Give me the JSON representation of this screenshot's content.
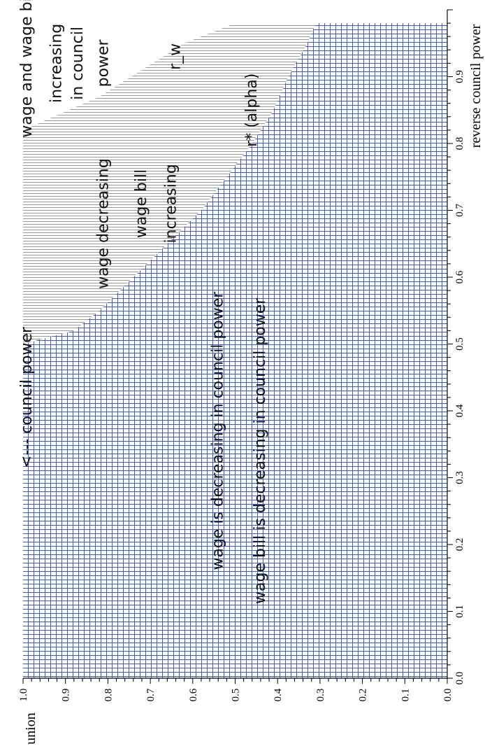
{
  "chart_data": {
    "type": "area",
    "orientation": "rotated-90-ccw",
    "x_axis": {
      "label": "reverse council power",
      "range": [
        0.0,
        1.0
      ],
      "ticks": [
        "0.0",
        "0.1",
        "0.2",
        "0.3",
        "0.4",
        "0.5",
        "0.6",
        "0.7",
        "0.8",
        "0.9"
      ],
      "tick_values": [
        0.0,
        0.1,
        0.2,
        0.3,
        0.4,
        0.5,
        0.6,
        0.7,
        0.8,
        0.9
      ]
    },
    "y_axis": {
      "label": "union",
      "range": [
        0.0,
        1.0
      ],
      "ticks": [
        "0.0",
        "0.1",
        "0.2",
        "0.3",
        "0.4",
        "0.5",
        "0.6",
        "0.7",
        "0.8",
        "0.9",
        "1.0"
      ],
      "tick_values": [
        0.0,
        0.1,
        0.2,
        0.3,
        0.4,
        0.5,
        0.6,
        0.7,
        0.8,
        0.9,
        1.0
      ]
    },
    "boundaries": [
      {
        "name": "r*(alpha)",
        "fill": "grid",
        "points": [
          [
            0.0,
            1.0
          ],
          [
            0.5,
            1.0
          ],
          [
            0.52,
            0.88
          ],
          [
            0.55,
            0.82
          ],
          [
            0.6,
            0.74
          ],
          [
            0.65,
            0.66
          ],
          [
            0.7,
            0.58
          ],
          [
            0.75,
            0.52
          ],
          [
            0.8,
            0.46
          ],
          [
            0.85,
            0.41
          ],
          [
            0.9,
            0.375
          ],
          [
            0.95,
            0.33
          ],
          [
            0.98,
            0.31
          ],
          [
            0.98,
            0.0
          ],
          [
            0.0,
            0.0
          ]
        ]
      },
      {
        "name": "r_w",
        "fill": "hatch",
        "points": [
          [
            0.5,
            1.0
          ],
          [
            0.82,
            1.0
          ],
          [
            0.87,
            0.82
          ],
          [
            0.95,
            0.62
          ],
          [
            0.98,
            0.5
          ],
          [
            0.98,
            0.31
          ],
          [
            0.95,
            0.33
          ],
          [
            0.9,
            0.375
          ],
          [
            0.85,
            0.41
          ],
          [
            0.8,
            0.46
          ],
          [
            0.75,
            0.52
          ],
          [
            0.7,
            0.58
          ],
          [
            0.65,
            0.66
          ],
          [
            0.6,
            0.74
          ],
          [
            0.55,
            0.82
          ],
          [
            0.52,
            0.88
          ]
        ]
      }
    ],
    "grid": false,
    "annotations": [
      {
        "id": "council",
        "text": "<--- council power",
        "x": 0.42,
        "y": 0.98
      },
      {
        "id": "wage-dec",
        "text": "wage decreasing",
        "x": 0.68,
        "y": 0.8
      },
      {
        "id": "wb-inc-1",
        "text": "wage bill",
        "x": 0.71,
        "y": 0.71
      },
      {
        "id": "wb-inc-2",
        "text": "increasing",
        "x": 0.71,
        "y": 0.64
      },
      {
        "id": "top-1",
        "text": "wage and wage bill",
        "x": 0.92,
        "y": 0.98
      },
      {
        "id": "top-2",
        "text": "increasing",
        "x": 0.92,
        "y": 0.91
      },
      {
        "id": "top-3",
        "text": "in council",
        "x": 0.92,
        "y": 0.86
      },
      {
        "id": "top-4",
        "text": "power",
        "x": 0.92,
        "y": 0.8
      },
      {
        "id": "rw",
        "text": "r_w",
        "x": 0.93,
        "y": 0.63
      },
      {
        "id": "rstar",
        "text": "r* (alpha)",
        "x": 0.85,
        "y": 0.45
      },
      {
        "id": "wage-cp",
        "text": "wage is decreasing in council power",
        "x": 0.37,
        "y": 0.53
      },
      {
        "id": "wb-cp",
        "text": "wage bill is decreasing in council power",
        "x": 0.34,
        "y": 0.43
      }
    ]
  },
  "colors": {
    "grid_fill": "#4a5a9a",
    "hatch_fill": "#9a9a9a",
    "axis": "#000000",
    "background": "#ffffff"
  }
}
